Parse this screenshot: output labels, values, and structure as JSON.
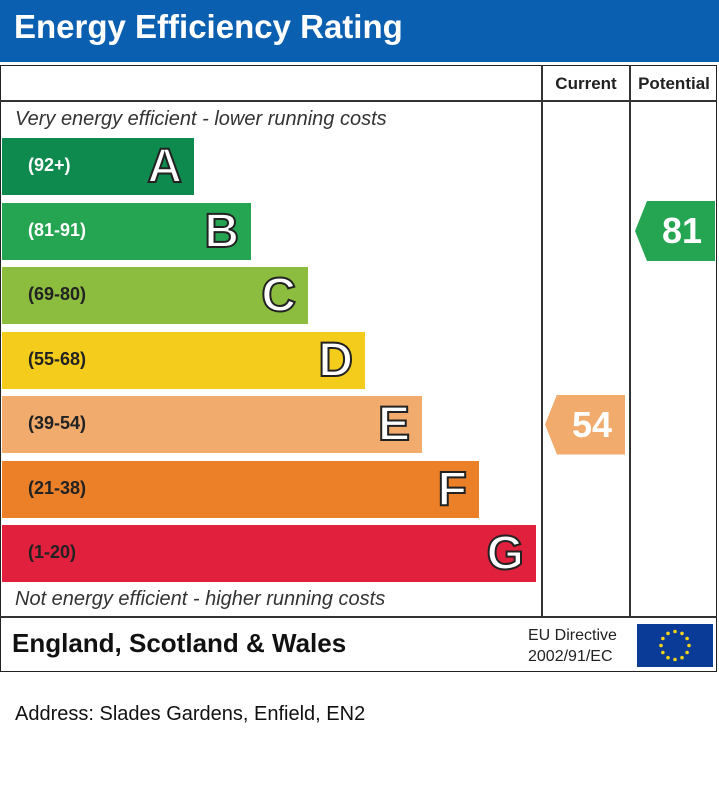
{
  "header": {
    "title": "Energy Efficiency Rating"
  },
  "columns": {
    "current": "Current",
    "potential": "Potential"
  },
  "notes": {
    "top": "Very energy efficient - lower running costs",
    "bottom": "Not energy efficient - higher running costs"
  },
  "chart_data": {
    "type": "bar",
    "title": "Energy Efficiency Rating",
    "categories": [
      "A",
      "B",
      "C",
      "D",
      "E",
      "F",
      "G"
    ],
    "bands": [
      {
        "letter": "A",
        "range": "(92+)",
        "min": 92,
        "max": 100,
        "color": "#0f8a4f",
        "text_color": "#ffffff"
      },
      {
        "letter": "B",
        "range": "(81-91)",
        "min": 81,
        "max": 91,
        "color": "#25a552",
        "text_color": "#ffffff"
      },
      {
        "letter": "C",
        "range": "(69-80)",
        "min": 69,
        "max": 80,
        "color": "#8cbd3f",
        "text_color": "#222222"
      },
      {
        "letter": "D",
        "range": "(55-68)",
        "min": 55,
        "max": 68,
        "color": "#f4cc1c",
        "text_color": "#222222"
      },
      {
        "letter": "E",
        "range": "(39-54)",
        "min": 39,
        "max": 54,
        "color": "#f1ab6c",
        "text_color": "#222222"
      },
      {
        "letter": "F",
        "range": "(21-38)",
        "min": 21,
        "max": 38,
        "color": "#ec8028",
        "text_color": "#222222"
      },
      {
        "letter": "G",
        "range": "(1-20)",
        "min": 1,
        "max": 20,
        "color": "#e1203d",
        "text_color": "#222222"
      }
    ],
    "series": [
      {
        "name": "Current",
        "value": 54,
        "band": "E",
        "color": "#f1ab6c"
      },
      {
        "name": "Potential",
        "value": 81,
        "band": "B",
        "color": "#25a552"
      }
    ]
  },
  "footer": {
    "country": "England, Scotland & Wales",
    "directive_line1": "EU Directive",
    "directive_line2": "2002/91/EC"
  },
  "address": "Address: Slades Gardens, Enfield, EN2"
}
